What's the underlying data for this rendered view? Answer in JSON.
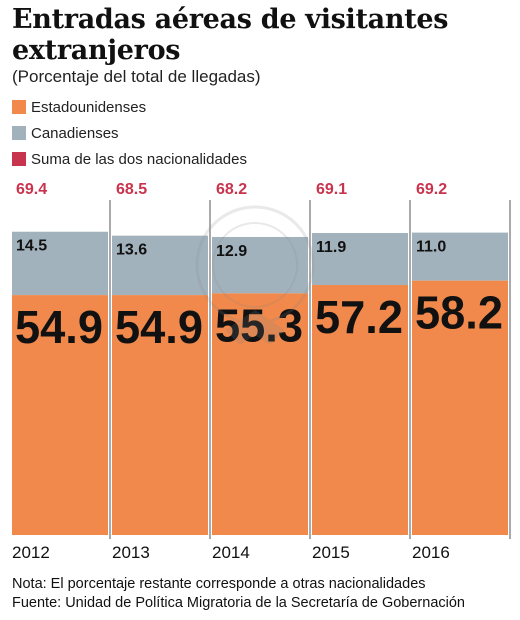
{
  "title": "Entradas aéreas de visitantes extranjeros",
  "subtitle": "(Porcentaje del total de llegadas)",
  "legend": [
    {
      "label": "Estadounidenses",
      "color": "#f0894b"
    },
    {
      "label": "Canadienses",
      "color": "#a2b2bd"
    },
    {
      "label": "Suma de las dos nacionalidades",
      "color": "#c8344e"
    }
  ],
  "chart_data": {
    "type": "bar",
    "stacked": true,
    "categories": [
      "2012",
      "2013",
      "2014",
      "2015",
      "2016"
    ],
    "series": [
      {
        "name": "Estadounidenses",
        "values": [
          54.9,
          54.9,
          55.3,
          57.2,
          58.2
        ],
        "color": "#f0894b"
      },
      {
        "name": "Canadienses",
        "values": [
          14.5,
          13.6,
          12.9,
          11.9,
          11.0
        ],
        "color": "#a2b2bd"
      }
    ],
    "totals": {
      "name": "Suma de las dos nacionalidades",
      "values": [
        "69.4",
        "68.5",
        "68.2",
        "69.1",
        "69.2"
      ],
      "color": "#c8344e"
    },
    "us_labels": [
      "54.9",
      "54.9",
      "55.3",
      "57.2",
      "58.2"
    ],
    "ca_labels": [
      "14.5",
      "13.6",
      "12.9",
      "11.9",
      "11.0"
    ],
    "grid": false
  },
  "notes": {
    "nota": "Nota: El porcentaje restante corresponde a otras nacionalidades",
    "fuente": "Fuente: Unidad de Política Migratoria de la Secretaría de Gobernación"
  }
}
